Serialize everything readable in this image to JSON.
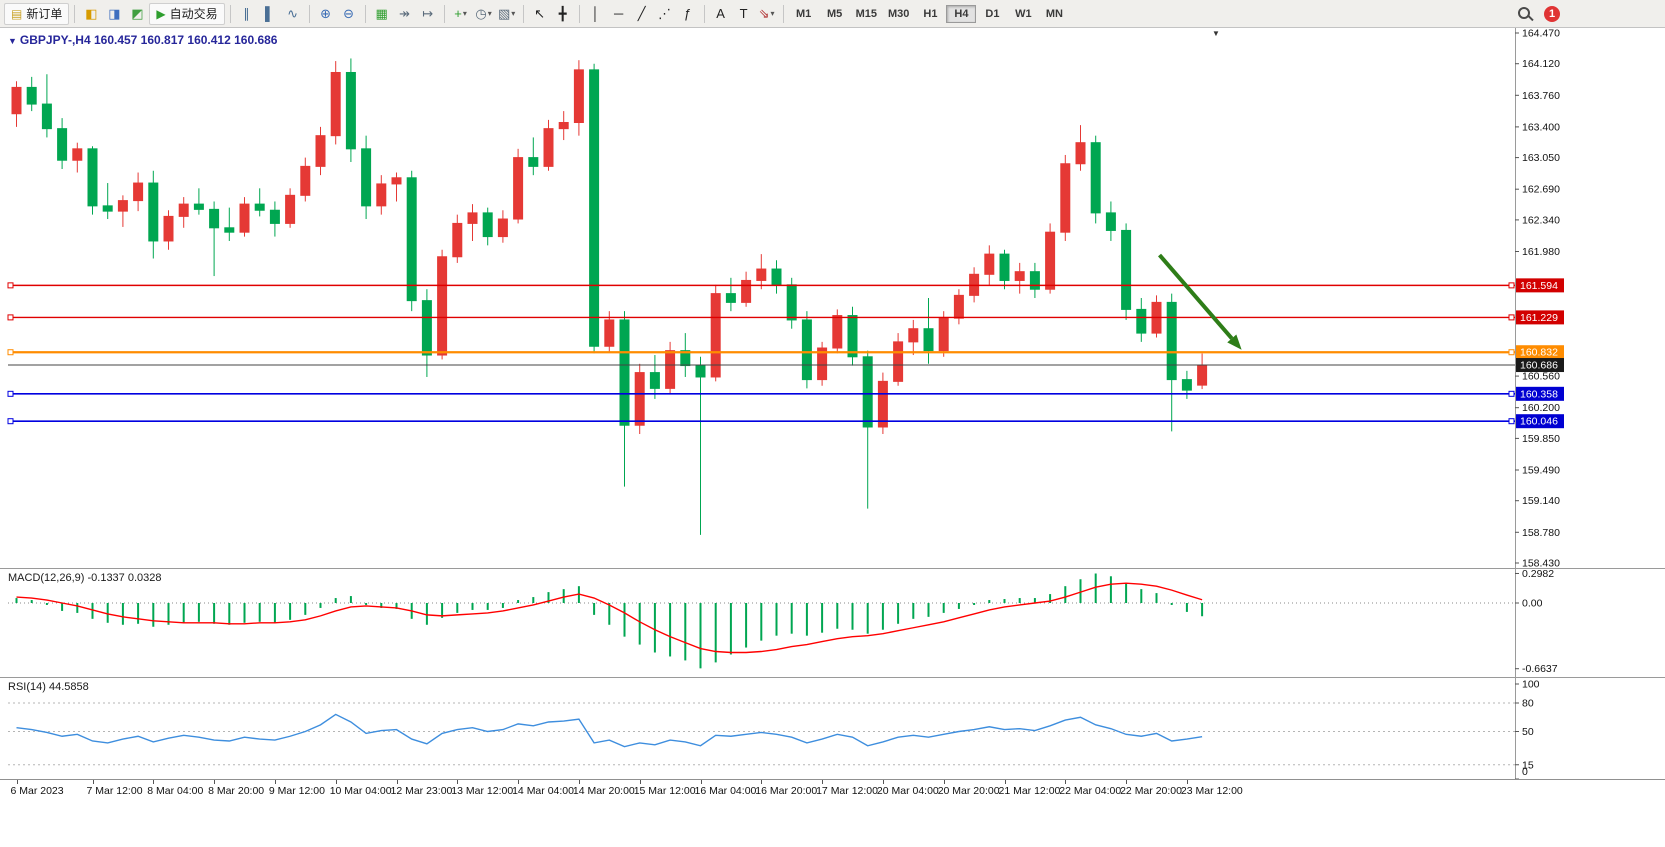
{
  "toolbar": {
    "notification_count": "1",
    "items": [
      {
        "type": "button",
        "name": "new-order-button",
        "icon_name": "new-order-icon",
        "glyph": "▤",
        "color": "#c9a227",
        "label": "新订单"
      },
      {
        "type": "sep"
      },
      {
        "type": "icon",
        "name": "market-watch-button",
        "icon_name": "market-watch-icon",
        "glyph": "◧",
        "color": "#d79b00"
      },
      {
        "type": "icon",
        "name": "navigator-button",
        "icon_name": "navigator-icon",
        "glyph": "◨",
        "color": "#3f6fbf"
      },
      {
        "type": "icon",
        "name": "terminal-button",
        "icon_name": "terminal-icon",
        "glyph": "◩",
        "color": "#3f9f3f"
      },
      {
        "type": "button",
        "name": "auto-trading-button",
        "icon_name": "play-icon",
        "glyph": "▶",
        "color": "#2e9e2e",
        "label": "自动交易"
      },
      {
        "type": "sep"
      },
      {
        "type": "icon",
        "name": "bar-chart-button",
        "icon_name": "bar-chart-icon",
        "glyph": "∥",
        "color": "#4a6f95"
      },
      {
        "type": "icon",
        "name": "candlestick-chart-button",
        "icon_name": "candlestick-icon",
        "glyph": "▌",
        "color": "#4a6f95"
      },
      {
        "type": "icon",
        "name": "line-chart-button",
        "icon_name": "line-chart-icon",
        "glyph": "∿",
        "color": "#4a6f95"
      },
      {
        "type": "sep"
      },
      {
        "type": "icon",
        "name": "zoom-in-button",
        "icon_name": "zoom-in-icon",
        "glyph": "⊕",
        "color": "#3b6db5"
      },
      {
        "type": "icon",
        "name": "zoom-out-button",
        "icon_name": "zoom-out-icon",
        "glyph": "⊖",
        "color": "#3b6db5"
      },
      {
        "type": "sep"
      },
      {
        "type": "icon",
        "name": "tile-windows-button",
        "icon_name": "tile-windows-icon",
        "glyph": "▦",
        "color": "#2e9e2e"
      },
      {
        "type": "icon",
        "name": "auto-scroll-button",
        "icon_name": "auto-scroll-icon",
        "glyph": "↠",
        "color": "#5a6b7b"
      },
      {
        "type": "icon",
        "name": "chart-shift-button",
        "icon_name": "chart-shift-icon",
        "glyph": "↦",
        "color": "#5a6b7b"
      },
      {
        "type": "sep"
      },
      {
        "type": "icon",
        "name": "indicators-button",
        "icon_name": "indicators-icon",
        "glyph": "+",
        "color": "#2e9e2e",
        "caret": true
      },
      {
        "type": "icon",
        "name": "periods-button",
        "icon_name": "clock-icon",
        "glyph": "◷",
        "color": "#5a6b7b",
        "caret": true
      },
      {
        "type": "icon",
        "name": "templates-button",
        "icon_name": "template-icon",
        "glyph": "▧",
        "color": "#5a6b7b",
        "caret": true
      },
      {
        "type": "sep"
      },
      {
        "type": "icon",
        "name": "cursor-button",
        "icon_name": "cursor-icon",
        "glyph": "↖",
        "color": "#222222"
      },
      {
        "type": "icon",
        "name": "crosshair-button",
        "icon_name": "crosshair-icon",
        "glyph": "╋",
        "color": "#222222"
      },
      {
        "type": "sep"
      },
      {
        "type": "icon",
        "name": "vertical-line-button",
        "icon_name": "vertical-line-icon",
        "glyph": "│",
        "color": "#222222"
      },
      {
        "type": "icon",
        "name": "horizontal-line-button",
        "icon_name": "horizontal-line-icon",
        "glyph": "─",
        "color": "#222222"
      },
      {
        "type": "icon",
        "name": "trendline-button",
        "icon_name": "trendline-icon",
        "glyph": "╱",
        "color": "#222222"
      },
      {
        "type": "icon",
        "name": "channel-button",
        "icon_name": "channel-icon",
        "glyph": "⋰",
        "color": "#222222"
      },
      {
        "type": "icon",
        "name": "fibonacci-button",
        "icon_name": "fibonacci-icon",
        "glyph": "ƒ",
        "color": "#222222"
      },
      {
        "type": "sep"
      },
      {
        "type": "icon",
        "name": "text-button",
        "icon_name": "text-icon",
        "glyph": "A",
        "color": "#222222"
      },
      {
        "type": "icon",
        "name": "text-label-button",
        "icon_name": "text-label-icon",
        "glyph": "T",
        "color": "#222222"
      },
      {
        "type": "icon",
        "name": "arrows-tool-button",
        "icon_name": "arrow-tool-icon",
        "glyph": "⇘",
        "color": "#b03030",
        "caret": true
      },
      {
        "type": "sep"
      },
      {
        "type": "tf",
        "label": "M1"
      },
      {
        "type": "tf",
        "label": "M5"
      },
      {
        "type": "tf",
        "label": "M15"
      },
      {
        "type": "tf",
        "label": "M30"
      },
      {
        "type": "tf",
        "label": "H1"
      },
      {
        "type": "tf",
        "label": "H4",
        "active": true
      },
      {
        "type": "tf",
        "label": "D1"
      },
      {
        "type": "tf",
        "label": "W1"
      },
      {
        "type": "tf",
        "label": "MN"
      }
    ]
  },
  "chart_data": {
    "type": "candlestick",
    "title": "GBPJPY-,H4",
    "ohlc_text": "160.457 160.817 160.412 160.686",
    "ylim": [
      158.43,
      164.47
    ],
    "colors": {
      "bull": "#e53935",
      "bear": "#00a651",
      "macd_hist": "#00a651",
      "macd_signal": "#ff0000",
      "rsi_line": "#3e8ede"
    },
    "candles": [
      [
        163.55,
        163.92,
        163.4,
        163.85
      ],
      [
        163.85,
        163.97,
        163.58,
        163.66
      ],
      [
        163.66,
        164.0,
        163.28,
        163.38
      ],
      [
        163.38,
        163.5,
        162.92,
        163.02
      ],
      [
        163.02,
        163.22,
        162.88,
        163.15
      ],
      [
        163.15,
        163.18,
        162.4,
        162.5
      ],
      [
        162.5,
        162.76,
        162.35,
        162.44
      ],
      [
        162.44,
        162.62,
        162.26,
        162.56
      ],
      [
        162.56,
        162.88,
        162.44,
        162.76
      ],
      [
        162.76,
        162.9,
        161.9,
        162.1
      ],
      [
        162.1,
        162.45,
        162.0,
        162.38
      ],
      [
        162.38,
        162.6,
        162.25,
        162.52
      ],
      [
        162.52,
        162.7,
        162.4,
        162.46
      ],
      [
        162.46,
        162.55,
        161.7,
        162.25
      ],
      [
        162.25,
        162.48,
        162.1,
        162.2
      ],
      [
        162.2,
        162.6,
        162.15,
        162.52
      ],
      [
        162.52,
        162.7,
        162.38,
        162.45
      ],
      [
        162.45,
        162.55,
        162.15,
        162.3
      ],
      [
        162.3,
        162.7,
        162.25,
        162.62
      ],
      [
        162.62,
        163.05,
        162.55,
        162.95
      ],
      [
        162.95,
        163.4,
        162.85,
        163.3
      ],
      [
        163.3,
        164.15,
        163.2,
        164.02
      ],
      [
        164.02,
        164.18,
        163.0,
        163.15
      ],
      [
        163.15,
        163.3,
        162.35,
        162.5
      ],
      [
        162.5,
        162.85,
        162.4,
        162.75
      ],
      [
        162.75,
        162.88,
        162.55,
        162.82
      ],
      [
        162.82,
        162.9,
        161.3,
        161.42
      ],
      [
        161.42,
        161.55,
        160.55,
        160.8
      ],
      [
        160.8,
        162.0,
        160.75,
        161.92
      ],
      [
        161.92,
        162.4,
        161.85,
        162.3
      ],
      [
        162.3,
        162.52,
        162.1,
        162.42
      ],
      [
        162.42,
        162.48,
        162.05,
        162.15
      ],
      [
        162.15,
        162.45,
        162.08,
        162.35
      ],
      [
        162.35,
        163.15,
        162.3,
        163.05
      ],
      [
        163.05,
        163.28,
        162.85,
        162.95
      ],
      [
        162.95,
        163.48,
        162.9,
        163.38
      ],
      [
        163.38,
        163.58,
        163.25,
        163.45
      ],
      [
        163.45,
        164.16,
        163.3,
        164.05
      ],
      [
        164.05,
        164.12,
        160.82,
        160.9
      ],
      [
        160.9,
        161.3,
        160.84,
        161.2
      ],
      [
        161.2,
        161.3,
        159.3,
        160.0
      ],
      [
        160.0,
        160.7,
        159.9,
        160.6
      ],
      [
        160.6,
        160.8,
        160.3,
        160.42
      ],
      [
        160.42,
        160.95,
        160.35,
        160.85
      ],
      [
        160.85,
        161.05,
        160.55,
        160.68
      ],
      [
        160.68,
        160.78,
        158.75,
        160.55
      ],
      [
        160.55,
        161.6,
        160.5,
        161.5
      ],
      [
        161.5,
        161.68,
        161.3,
        161.4
      ],
      [
        161.4,
        161.75,
        161.35,
        161.65
      ],
      [
        161.65,
        161.95,
        161.55,
        161.78
      ],
      [
        161.78,
        161.88,
        161.5,
        161.6
      ],
      [
        161.6,
        161.68,
        161.1,
        161.2
      ],
      [
        161.2,
        161.3,
        160.42,
        160.52
      ],
      [
        160.52,
        160.95,
        160.45,
        160.88
      ],
      [
        160.88,
        161.32,
        160.82,
        161.25
      ],
      [
        161.25,
        161.35,
        160.68,
        160.78
      ],
      [
        160.78,
        160.85,
        159.05,
        159.98
      ],
      [
        159.98,
        160.6,
        159.9,
        160.5
      ],
      [
        160.5,
        161.05,
        160.45,
        160.95
      ],
      [
        160.95,
        161.2,
        160.8,
        161.1
      ],
      [
        161.1,
        161.45,
        160.7,
        160.85
      ],
      [
        160.85,
        161.3,
        160.78,
        161.22
      ],
      [
        161.22,
        161.55,
        161.15,
        161.48
      ],
      [
        161.48,
        161.8,
        161.4,
        161.72
      ],
      [
        161.72,
        162.05,
        161.6,
        161.95
      ],
      [
        161.95,
        162.0,
        161.55,
        161.65
      ],
      [
        161.65,
        161.85,
        161.5,
        161.75
      ],
      [
        161.75,
        161.85,
        161.45,
        161.55
      ],
      [
        161.55,
        162.3,
        161.5,
        162.2
      ],
      [
        162.2,
        163.08,
        162.1,
        162.98
      ],
      [
        162.98,
        163.42,
        162.9,
        163.22
      ],
      [
        163.22,
        163.3,
        162.3,
        162.42
      ],
      [
        162.42,
        162.55,
        162.1,
        162.22
      ],
      [
        162.22,
        162.3,
        161.2,
        161.32
      ],
      [
        161.32,
        161.45,
        160.95,
        161.05
      ],
      [
        161.05,
        161.48,
        161.0,
        161.4
      ],
      [
        161.4,
        161.5,
        159.93,
        160.52
      ],
      [
        160.52,
        160.62,
        160.3,
        160.4
      ],
      [
        160.457,
        160.817,
        160.412,
        160.686
      ]
    ],
    "price_ticks": [
      "164.470",
      "164.120",
      "163.760",
      "163.400",
      "163.050",
      "162.690",
      "162.340",
      "161.980",
      "160.560",
      "160.200",
      "159.850",
      "159.490",
      "159.140",
      "158.780",
      "158.430"
    ],
    "price_badges": [
      {
        "label": "161.594",
        "value": 161.594,
        "color": "#d20000"
      },
      {
        "label": "161.229",
        "value": 161.229,
        "color": "#d20000"
      },
      {
        "label": "160.832",
        "value": 160.832,
        "color": "#ff8c00"
      },
      {
        "label": "160.686",
        "value": 160.686,
        "color": "#1a1a1a"
      },
      {
        "label": "160.358",
        "value": 160.358,
        "color": "#0000d2"
      },
      {
        "label": "160.046",
        "value": 160.046,
        "color": "#0000d2"
      }
    ],
    "hlines": [
      {
        "value": 161.594,
        "color": "#e00000",
        "width": 1.4
      },
      {
        "value": 161.229,
        "color": "#e00000",
        "width": 1.4
      },
      {
        "value": 160.832,
        "color": "#ff8c00",
        "width": 2.2
      },
      {
        "value": 160.358,
        "color": "#0000e0",
        "width": 1.6
      },
      {
        "value": 160.046,
        "color": "#0000e0",
        "width": 1.6
      }
    ],
    "current_price": {
      "value": 160.686,
      "label": "160.686"
    },
    "arrow": {
      "from": {
        "index": 75.2,
        "price": 161.94
      },
      "to": {
        "index": 80.6,
        "price": 160.86
      },
      "color": "#2e7d18",
      "width": 4
    },
    "time_labels": [
      {
        "text": "6 Mar 2023",
        "index": 0
      },
      {
        "text": "7 Mar 12:00",
        "index": 5
      },
      {
        "text": "8 Mar 04:00",
        "index": 9
      },
      {
        "text": "8 Mar 20:00",
        "index": 13
      },
      {
        "text": "9 Mar 12:00",
        "index": 17
      },
      {
        "text": "10 Mar 04:00",
        "index": 21
      },
      {
        "text": "12 Mar 23:00",
        "index": 25
      },
      {
        "text": "13 Mar 12:00",
        "index": 29
      },
      {
        "text": "14 Mar 04:00",
        "index": 33
      },
      {
        "text": "14 Mar 20:00",
        "index": 37
      },
      {
        "text": "15 Mar 12:00",
        "index": 41
      },
      {
        "text": "16 Mar 04:00",
        "index": 45
      },
      {
        "text": "16 Mar 20:00",
        "index": 49
      },
      {
        "text": "17 Mar 12:00",
        "index": 53
      },
      {
        "text": "20 Mar 04:00",
        "index": 57
      },
      {
        "text": "20 Mar 20:00",
        "index": 61
      },
      {
        "text": "21 Mar 12:00",
        "index": 65
      },
      {
        "text": "22 Mar 04:00",
        "index": 69
      },
      {
        "text": "22 Mar 20:00",
        "index": 73
      },
      {
        "text": "23 Mar 12:00",
        "index": 77
      }
    ],
    "macd": {
      "label": "MACD(12,26,9)",
      "values_text": "-0.1337 0.0328",
      "hist": [
        0.05,
        0.03,
        -0.02,
        -0.08,
        -0.1,
        -0.16,
        -0.2,
        -0.22,
        -0.21,
        -0.24,
        -0.22,
        -0.2,
        -0.19,
        -0.21,
        -0.22,
        -0.2,
        -0.19,
        -0.2,
        -0.17,
        -0.12,
        -0.05,
        0.05,
        0.07,
        -0.02,
        -0.05,
        -0.06,
        -0.16,
        -0.22,
        -0.15,
        -0.1,
        -0.07,
        -0.07,
        -0.05,
        0.03,
        0.06,
        0.11,
        0.14,
        0.17,
        -0.12,
        -0.22,
        -0.34,
        -0.42,
        -0.5,
        -0.54,
        -0.58,
        -0.66,
        -0.6,
        -0.52,
        -0.45,
        -0.38,
        -0.33,
        -0.31,
        -0.33,
        -0.3,
        -0.26,
        -0.27,
        -0.31,
        -0.27,
        -0.21,
        -0.16,
        -0.14,
        -0.1,
        -0.06,
        -0.02,
        0.03,
        0.04,
        0.05,
        0.05,
        0.09,
        0.17,
        0.24,
        0.298,
        0.27,
        0.2,
        0.14,
        0.1,
        -0.02,
        -0.09,
        -0.1337
      ],
      "signal": [
        0.06,
        0.05,
        0.03,
        0.0,
        -0.03,
        -0.07,
        -0.11,
        -0.14,
        -0.16,
        -0.18,
        -0.19,
        -0.2,
        -0.2,
        -0.2,
        -0.21,
        -0.21,
        -0.2,
        -0.2,
        -0.19,
        -0.17,
        -0.13,
        -0.08,
        -0.04,
        -0.03,
        -0.04,
        -0.05,
        -0.08,
        -0.12,
        -0.13,
        -0.12,
        -0.11,
        -0.1,
        -0.08,
        -0.05,
        -0.02,
        0.02,
        0.06,
        0.09,
        0.05,
        -0.02,
        -0.1,
        -0.19,
        -0.27,
        -0.34,
        -0.4,
        -0.46,
        -0.49,
        -0.5,
        -0.5,
        -0.49,
        -0.47,
        -0.44,
        -0.42,
        -0.39,
        -0.36,
        -0.34,
        -0.33,
        -0.31,
        -0.28,
        -0.25,
        -0.22,
        -0.19,
        -0.15,
        -0.11,
        -0.07,
        -0.04,
        -0.02,
        0.0,
        0.02,
        0.06,
        0.11,
        0.16,
        0.19,
        0.2,
        0.19,
        0.17,
        0.13,
        0.08,
        0.033
      ],
      "scale_ticks": [
        {
          "label": "0.2982",
          "value": 0.2982
        },
        {
          "label": "0.00",
          "value": 0
        },
        {
          "label": "-0.6637",
          "value": -0.6637
        }
      ]
    },
    "rsi": {
      "label": "RSI(14)",
      "value_text": "44.5858",
      "ylim": [
        0,
        100
      ],
      "levels": [
        80,
        50,
        15
      ],
      "values": [
        54,
        52,
        49,
        45,
        47,
        40,
        38,
        42,
        45,
        39,
        43,
        46,
        44,
        41,
        40,
        44,
        42,
        41,
        45,
        50,
        57,
        68,
        60,
        48,
        51,
        52,
        42,
        37,
        48,
        52,
        54,
        50,
        52,
        58,
        56,
        60,
        61,
        63,
        38,
        41,
        34,
        38,
        36,
        41,
        39,
        35,
        46,
        45,
        47,
        49,
        47,
        44,
        38,
        42,
        47,
        44,
        35,
        39,
        44,
        46,
        44,
        47,
        50,
        52,
        55,
        52,
        53,
        51,
        56,
        62,
        65,
        57,
        53,
        47,
        45,
        48,
        40,
        42,
        44.59
      ],
      "scale_ticks": [
        {
          "label": "100",
          "value": 100
        },
        {
          "label": "80",
          "value": 80
        },
        {
          "label": "50",
          "value": 50
        },
        {
          "label": "15",
          "value": 15
        },
        {
          "label": "0",
          "value": 0
        }
      ]
    }
  }
}
